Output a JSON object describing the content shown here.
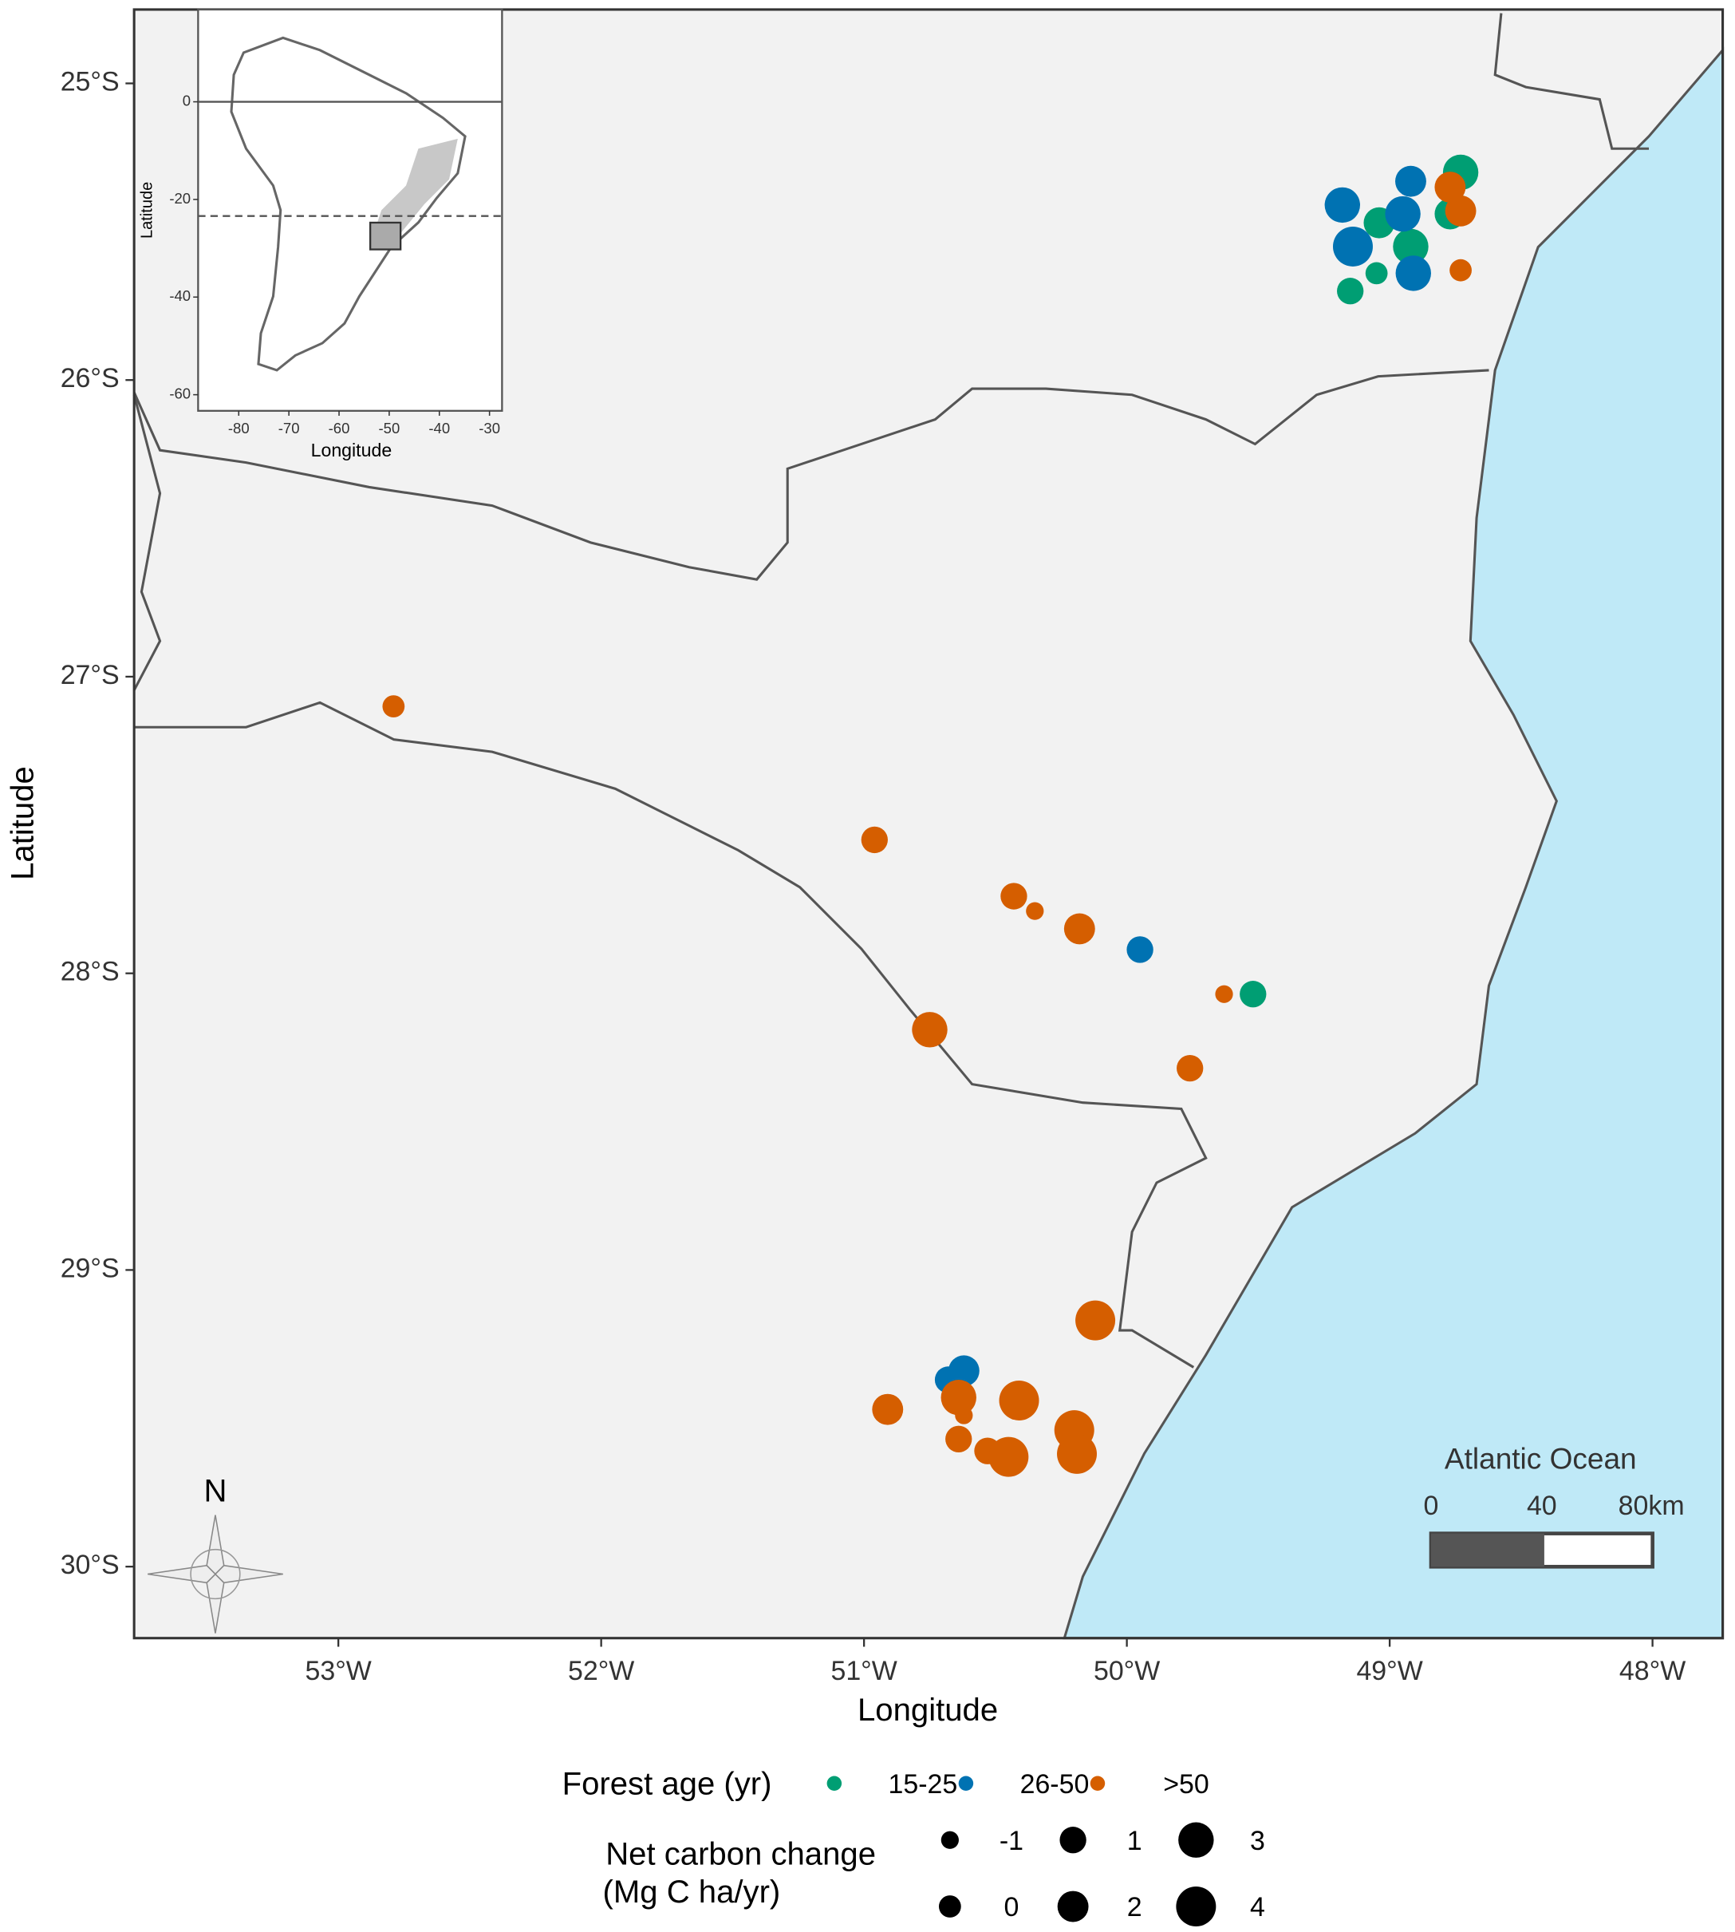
{
  "chart_data": {
    "type": "scatter",
    "xlabel": "Longitude",
    "ylabel": "Latitude",
    "xlim": [
      -53.777,
      -47.733
    ],
    "ylim": [
      -30.241,
      -24.751
    ],
    "xticks": [
      {
        "value": -53,
        "label": "53°W"
      },
      {
        "value": -52,
        "label": "52°W"
      },
      {
        "value": -51,
        "label": "51°W"
      },
      {
        "value": -50,
        "label": "50°W"
      },
      {
        "value": -49,
        "label": "49°W"
      },
      {
        "value": -48,
        "label": "48°W"
      }
    ],
    "yticks": [
      {
        "value": -25,
        "label": "25°S"
      },
      {
        "value": -26,
        "label": "26°S"
      },
      {
        "value": -27,
        "label": "27°S"
      },
      {
        "value": -28,
        "label": "28°S"
      },
      {
        "value": -29,
        "label": "29°S"
      },
      {
        "value": -30,
        "label": "30°S"
      }
    ],
    "legend_title": "Forest age (yr)",
    "series": [
      {
        "name": "15-25",
        "color": "#009e73",
        "x": [
          -48.73,
          -49.04,
          -48.92,
          -48.77,
          -49.05,
          -49.15,
          -49.52
        ],
        "y": [
          -25.3,
          -25.47,
          -25.55,
          -25.44,
          -25.64,
          -25.7,
          -28.07
        ],
        "sizes": [
          3,
          2,
          3,
          2,
          0,
          1,
          1
        ]
      },
      {
        "name": "26-50",
        "color": "#0072b2",
        "x": [
          -49.18,
          -49.14,
          -48.92,
          -48.95,
          -48.91,
          -49.95,
          -50.62,
          -50.68
        ],
        "y": [
          -25.41,
          -25.55,
          -25.33,
          -25.44,
          -25.64,
          -27.92,
          -29.34,
          -29.37
        ],
        "sizes": [
          3,
          4,
          2,
          3,
          3,
          1,
          2,
          1
        ]
      },
      {
        "name": ">50",
        "color": "#d55e00",
        "x": [
          -48.73,
          -48.77,
          -48.73,
          -52.79,
          -50.96,
          -50.43,
          -50.35,
          -50.18,
          -49.63,
          -50.75,
          -49.76,
          -50.12,
          -50.91,
          -50.64,
          -50.62,
          -50.41,
          -50.64,
          -50.53,
          -50.45,
          -50.2,
          -50.19
        ],
        "y": [
          -25.43,
          -25.35,
          -25.63,
          -27.1,
          -27.55,
          -27.74,
          -27.79,
          -27.85,
          -28.07,
          -28.19,
          -28.32,
          -29.17,
          -29.47,
          -29.43,
          -29.49,
          -29.44,
          -29.57,
          -29.61,
          -29.63,
          -29.54,
          -29.62
        ],
        "sizes": [
          2,
          2,
          0,
          0,
          1,
          1,
          -1,
          2,
          -1,
          3,
          1,
          4,
          2,
          3,
          -1,
          4,
          1,
          1,
          4,
          4,
          4
        ]
      }
    ],
    "size_legend": {
      "title": [
        "Net carbon change",
        "(Mg C ha/yr)"
      ],
      "values": [
        -1,
        0,
        1,
        2,
        3,
        4
      ]
    },
    "annotations": {
      "ocean": "Atlantic Ocean",
      "north": "N",
      "scale_bar": [
        "0",
        "40",
        "80km"
      ]
    },
    "inset": {
      "xlabel": "Longitude",
      "ylabel": "Latitude",
      "xlim": [
        -88.1,
        -27.5
      ],
      "ylim": [
        -63.3,
        18.9
      ],
      "xticks": [
        -80,
        -70,
        -60,
        -50,
        -40,
        -30
      ],
      "yticks": [
        0,
        -20,
        -40,
        -60
      ],
      "hlines": [
        {
          "y": 0,
          "dashed": false
        },
        {
          "y": -23.4,
          "dashed": true
        }
      ]
    }
  }
}
